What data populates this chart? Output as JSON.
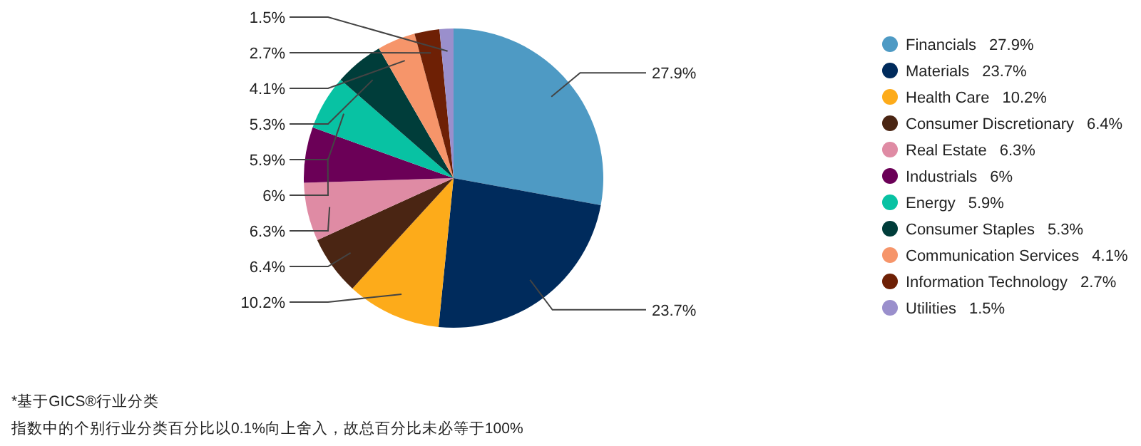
{
  "chart_data": {
    "type": "pie",
    "categories": [
      "Financials",
      "Materials",
      "Health Care",
      "Consumer Discretionary",
      "Real Estate",
      "Industrials",
      "Energy",
      "Consumer Staples",
      "Communication Services",
      "Information Technology",
      "Utilities"
    ],
    "values": [
      27.9,
      23.7,
      10.2,
      6.4,
      6.3,
      6,
      5.9,
      5.3,
      4.1,
      2.7,
      1.5
    ],
    "value_labels": [
      "27.9%",
      "23.7%",
      "10.2%",
      "6.4%",
      "6.3%",
      "6%",
      "5.9%",
      "5.3%",
      "4.1%",
      "2.7%",
      "1.5%"
    ],
    "colors": [
      "#4e9ac4",
      "#002b5c",
      "#fdab1a",
      "#4a2513",
      "#df8ba4",
      "#6b0057",
      "#08c2a3",
      "#003d3a",
      "#f6956a",
      "#6e2005",
      "#9a8fcc"
    ],
    "legend": "right",
    "annotations": [
      "*基于GICS®行业分类",
      "指数中的个别行业分类百分比以0.1%向上舍入，故总百分比未必等于100%"
    ]
  }
}
